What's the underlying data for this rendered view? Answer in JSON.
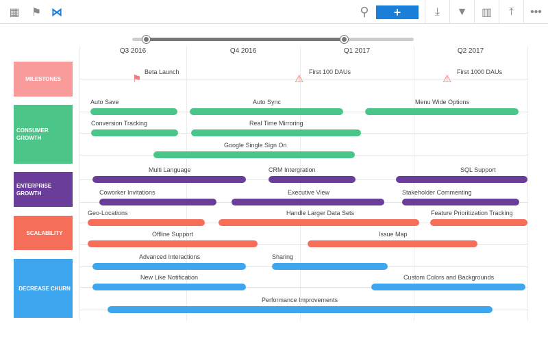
{
  "toolbar": {
    "left_icons": [
      "grid-icon",
      "flag-icon",
      "swimlane-icon"
    ],
    "add_label": "+",
    "right_icons": [
      "download-icon",
      "filter-icon",
      "layout-icon",
      "upload-icon",
      "more-icon"
    ]
  },
  "timeline": {
    "quarters": [
      "Q3 2016",
      "Q4 2016",
      "Q1 2017",
      "Q2 2017"
    ]
  },
  "colors": {
    "milestones": "#f99b9b",
    "consumer": "#4cc688",
    "enterprise": "#6a3d9a",
    "scalability": "#f56e5a",
    "churn": "#3ea6ef",
    "accent": "#1a7fd8"
  },
  "categories": [
    {
      "label": "MILESTONES"
    },
    {
      "label": "CONSUMER GROWTH"
    },
    {
      "label": "ENTERPRISE GROWTH"
    },
    {
      "label": "SCALABILITY"
    },
    {
      "label": "DECREASE CHURN"
    }
  ],
  "milestones": [
    {
      "label": "Beta Launch",
      "icon": "flag-icon"
    },
    {
      "label": "First 100 DAUs",
      "icon": "warning-icon"
    },
    {
      "label": "First 1000 DAUs",
      "icon": "warning-icon"
    }
  ],
  "items": [
    {
      "label": "Auto Save"
    },
    {
      "label": "Auto Sync"
    },
    {
      "label": "Menu Wide Options"
    },
    {
      "label": "Conversion Tracking"
    },
    {
      "label": "Real Time Mirroring"
    },
    {
      "label": "Google Single Sign On"
    },
    {
      "label": "Multi Language"
    },
    {
      "label": "CRM Intergration"
    },
    {
      "label": "SQL Support"
    },
    {
      "label": "Coworker Invitations"
    },
    {
      "label": "Executive View"
    },
    {
      "label": "Stakeholder Commenting"
    },
    {
      "label": "Geo-Locations"
    },
    {
      "label": "Handle Larger Data Sets"
    },
    {
      "label": "Feature Prioritization Tracking"
    },
    {
      "label": "Offline Support"
    },
    {
      "label": "Issue Map"
    },
    {
      "label": "Advanced Interactions"
    },
    {
      "label": "Sharing"
    },
    {
      "label": "New Like Notification"
    },
    {
      "label": "Custom Colors and Backgrounds"
    },
    {
      "label": "Performance Improvements"
    }
  ]
}
